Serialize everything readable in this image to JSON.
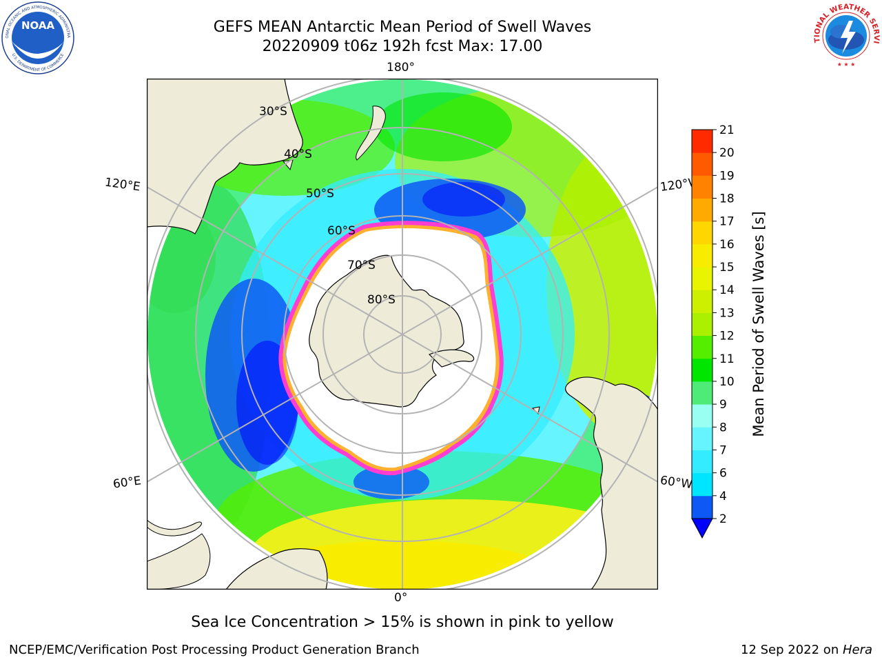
{
  "header": {
    "title_line1": "GEFS MEAN Antarctic Mean Period of Swell Waves",
    "title_line2": "20220909 t06z 192h fcst   Max: 17.00"
  },
  "logos": {
    "noaa_text": "NOAA",
    "noaa_ring_text": "NATIONAL OCEANIC AND ATMOSPHERIC ADMINISTRATION",
    "noaa_ring_text_bottom": "U.S. DEPARTMENT OF COMMERCE",
    "nws_ring_text": "NATIONAL WEATHER SERVICE"
  },
  "map": {
    "projection": "south-polar-stereographic",
    "longitude_labels": [
      "180°",
      "120°E",
      "120°W",
      "60°E",
      "60°W",
      "0°"
    ],
    "latitude_labels": [
      "30°S",
      "40°S",
      "50°S",
      "60°S",
      "70°S",
      "80°S"
    ],
    "colors": {
      "land": "#eeecd9",
      "ocean_high": "#f2ef1a",
      "ice_edge": "#ff3dd0",
      "ice_interior": "#ffffff"
    }
  },
  "colorbar": {
    "label": "Mean Period of Swell Waves [s]",
    "ticks": [
      "2",
      "4",
      "6",
      "7",
      "8",
      "9",
      "10",
      "11",
      "12",
      "13",
      "14",
      "15",
      "16",
      "17",
      "18",
      "19",
      "20",
      "21"
    ],
    "colors": [
      "#0e59f5",
      "#00e5ff",
      "#33ecff",
      "#66f4ff",
      "#99fff2",
      "#4eeb78",
      "#00e600",
      "#55ee00",
      "#aaf000",
      "#ccf000",
      "#e8f400",
      "#f8ec00",
      "#ffd600",
      "#ffaa00",
      "#ff8200",
      "#ff5a00",
      "#ff2a00"
    ],
    "under_color": "#0000ff"
  },
  "subtitle": "Sea Ice Concentration > 15% is shown in pink to yellow",
  "footer": {
    "left": "NCEP/EMC/Verification Post Processing Product Generation Branch",
    "right_date": "12 Sep 2022 on ",
    "right_host": "Hera"
  }
}
